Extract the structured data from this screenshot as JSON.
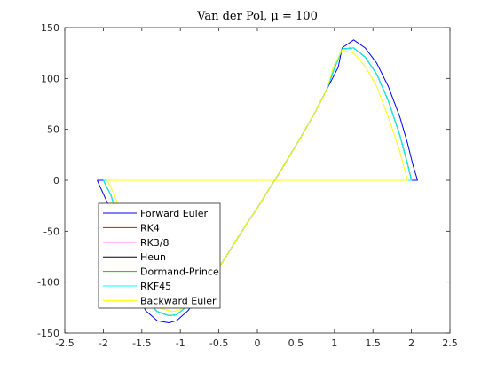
{
  "chart_data": {
    "type": "line",
    "title": "Van der Pol, μ = 100",
    "xlabel": "",
    "ylabel": "",
    "xlim": [
      -2.5,
      2.5
    ],
    "ylim": [
      -150,
      150
    ],
    "xticks": [
      -2.5,
      -2,
      -1.5,
      -1,
      -0.5,
      0,
      0.5,
      1,
      1.5,
      2,
      2.5
    ],
    "yticks": [
      -150,
      -100,
      -50,
      0,
      50,
      100,
      150
    ],
    "xtick_labels": [
      "-2.5",
      "-2",
      "-1.5",
      "-1",
      "-0.5",
      "0",
      "0.5",
      "1",
      "1.5",
      "2",
      "2.5"
    ],
    "ytick_labels": [
      "-150",
      "-100",
      "-50",
      "0",
      "50",
      "100",
      "150"
    ],
    "grid": false,
    "legend_position": "bottom-left",
    "series": [
      {
        "name": "Forward Euler",
        "color": "#0000ff",
        "x": [
          -2.08,
          -1.9,
          -1.75,
          -1.6,
          -1.45,
          -1.3,
          -1.15,
          -1.05,
          -0.9,
          -0.75,
          -0.6,
          -0.5,
          -0.45,
          -0.3,
          -0.15,
          0,
          0.15,
          0.3,
          0.45,
          0.6,
          0.75,
          0.9,
          1.05,
          1.1,
          1.25,
          1.4,
          1.55,
          1.7,
          1.85,
          1.95,
          2.02,
          2.08,
          1.9,
          1.7,
          1.5,
          1.3,
          1.1,
          1.0,
          0.9,
          0.8,
          0.65,
          0.5,
          0.3,
          0.1,
          -0.1,
          -0.3,
          -0.5,
          -0.7,
          -0.9,
          -1.1,
          -1.3,
          -1.5,
          -1.7,
          -1.9,
          -2.08
        ],
        "y": [
          0,
          -30,
          -70,
          -105,
          -128,
          -138,
          -140,
          -138,
          -128,
          -112,
          -95,
          -85,
          -80,
          -62,
          -44,
          -27,
          -9,
          9,
          28,
          47,
          67,
          89,
          111,
          130,
          138,
          130,
          115,
          92,
          62,
          36,
          15,
          0,
          0,
          0,
          0,
          0,
          0,
          0,
          0,
          0,
          0,
          0,
          0,
          0,
          0,
          0,
          0,
          0,
          0,
          0,
          0,
          0,
          0,
          0,
          0
        ]
      },
      {
        "name": "RK4",
        "color": "#ff0000",
        "x": [
          -2.0,
          -1.9,
          -1.75,
          -1.6,
          -1.45,
          -1.3,
          -1.15,
          -1.05,
          -0.9,
          -0.75,
          -0.6,
          -0.5,
          -0.45,
          -0.3,
          -0.15,
          0,
          0.15,
          0.3,
          0.45,
          0.6,
          0.75,
          0.9,
          1.0,
          1.1,
          1.25,
          1.4,
          1.55,
          1.7,
          1.85,
          1.95,
          2.0,
          1.8,
          1.6,
          1.4,
          1.2,
          1.05,
          0.95,
          0.85,
          0.75,
          0.6,
          0.4,
          0.2,
          0,
          -0.2,
          -0.4,
          -0.6,
          -0.8,
          -1.0,
          -1.2,
          -1.4,
          -1.6,
          -1.8,
          -2.0
        ],
        "y": [
          0,
          -15,
          -52,
          -92,
          -118,
          -129,
          -133,
          -132,
          -123,
          -109,
          -93,
          -85,
          -80,
          -62,
          -44,
          -27,
          -9,
          9,
          28,
          47,
          67,
          89,
          110,
          129,
          130,
          121,
          104,
          78,
          44,
          16,
          0,
          0,
          0,
          0,
          0,
          0,
          0,
          0,
          0,
          0,
          0,
          0,
          0,
          0,
          0,
          0,
          0,
          0,
          0,
          0,
          0,
          0,
          0
        ]
      },
      {
        "name": "RK3/8",
        "color": "#ff00ff",
        "x": [
          -2.0,
          -1.9,
          -1.75,
          -1.6,
          -1.45,
          -1.3,
          -1.15,
          -1.05,
          -0.9,
          -0.75,
          -0.6,
          -0.5,
          -0.45,
          -0.3,
          -0.15,
          0,
          0.15,
          0.3,
          0.45,
          0.6,
          0.75,
          0.9,
          1.0,
          1.1,
          1.25,
          1.4,
          1.55,
          1.7,
          1.85,
          1.95,
          2.0,
          1.8,
          1.6,
          1.4,
          1.2,
          1.05,
          0.95,
          0.85,
          0.75,
          0.6,
          0.4,
          0.2,
          0,
          -0.2,
          -0.4,
          -0.6,
          -0.8,
          -1.0,
          -1.2,
          -1.4,
          -1.6,
          -1.8,
          -2.0
        ],
        "y": [
          0,
          -15,
          -52,
          -92,
          -118,
          -129,
          -133,
          -132,
          -123,
          -109,
          -93,
          -85,
          -80,
          -62,
          -44,
          -27,
          -9,
          9,
          28,
          47,
          67,
          89,
          110,
          129,
          130,
          121,
          104,
          78,
          44,
          16,
          0,
          0,
          0,
          0,
          0,
          0,
          0,
          0,
          0,
          0,
          0,
          0,
          0,
          0,
          0,
          0,
          0,
          0,
          0,
          0,
          0,
          0,
          0
        ]
      },
      {
        "name": "Heun",
        "color": "#000000",
        "x": [
          -2.0,
          -1.9,
          -1.75,
          -1.6,
          -1.45,
          -1.3,
          -1.15,
          -1.05,
          -0.9,
          -0.75,
          -0.6,
          -0.5,
          -0.45,
          -0.3,
          -0.15,
          0,
          0.15,
          0.3,
          0.45,
          0.6,
          0.75,
          0.9,
          1.0,
          1.1,
          1.25,
          1.4,
          1.55,
          1.7,
          1.85,
          1.95,
          2.0,
          1.8,
          1.6,
          1.4,
          1.2,
          1.05,
          0.95,
          0.85,
          0.75,
          0.6,
          0.4,
          0.2,
          0,
          -0.2,
          -0.4,
          -0.6,
          -0.8,
          -1.0,
          -1.2,
          -1.4,
          -1.6,
          -1.8,
          -2.0
        ],
        "y": [
          0,
          -15,
          -52,
          -92,
          -118,
          -129,
          -133,
          -132,
          -123,
          -109,
          -93,
          -85,
          -80,
          -62,
          -44,
          -27,
          -9,
          9,
          28,
          47,
          67,
          89,
          110,
          129,
          130,
          121,
          104,
          78,
          44,
          16,
          0,
          0,
          0,
          0,
          0,
          0,
          0,
          0,
          0,
          0,
          0,
          0,
          0,
          0,
          0,
          0,
          0,
          0,
          0,
          0,
          0,
          0,
          0
        ]
      },
      {
        "name": "Dormand-Prince",
        "color": "#00cc00",
        "x": [
          -2.0,
          -1.9,
          -1.75,
          -1.6,
          -1.45,
          -1.3,
          -1.15,
          -1.05,
          -0.9,
          -0.75,
          -0.6,
          -0.5,
          -0.45,
          -0.3,
          -0.15,
          0,
          0.15,
          0.3,
          0.45,
          0.6,
          0.75,
          0.9,
          1.0,
          1.1,
          1.25,
          1.4,
          1.55,
          1.7,
          1.85,
          1.95,
          2.0,
          1.8,
          1.6,
          1.4,
          1.2,
          1.05,
          0.95,
          0.85,
          0.75,
          0.6,
          0.4,
          0.2,
          0,
          -0.2,
          -0.4,
          -0.6,
          -0.8,
          -1.0,
          -1.2,
          -1.4,
          -1.6,
          -1.8,
          -2.0
        ],
        "y": [
          0,
          -15,
          -52,
          -92,
          -118,
          -129,
          -133,
          -132,
          -123,
          -109,
          -93,
          -85,
          -80,
          -62,
          -44,
          -27,
          -9,
          9,
          28,
          47,
          67,
          89,
          110,
          129,
          130,
          121,
          104,
          78,
          44,
          16,
          0,
          0,
          0,
          0,
          0,
          0,
          0,
          0,
          0,
          0,
          0,
          0,
          0,
          0,
          0,
          0,
          0,
          0,
          0,
          0,
          0,
          0,
          0
        ]
      },
      {
        "name": "RKF45",
        "color": "#00ffff",
        "x": [
          -2.0,
          -1.9,
          -1.75,
          -1.6,
          -1.45,
          -1.3,
          -1.15,
          -1.05,
          -0.9,
          -0.75,
          -0.6,
          -0.5,
          -0.45,
          -0.3,
          -0.15,
          0,
          0.15,
          0.3,
          0.45,
          0.6,
          0.75,
          0.9,
          1.0,
          1.1,
          1.25,
          1.4,
          1.55,
          1.7,
          1.85,
          1.95,
          2.0,
          1.8,
          1.6,
          1.4,
          1.2,
          1.05,
          0.95,
          0.85,
          0.75,
          0.6,
          0.4,
          0.2,
          0,
          -0.2,
          -0.4,
          -0.6,
          -0.8,
          -1.0,
          -1.2,
          -1.4,
          -1.6,
          -1.8,
          -2.0
        ],
        "y": [
          0,
          -15,
          -52,
          -92,
          -118,
          -129,
          -133,
          -132,
          -123,
          -109,
          -93,
          -85,
          -80,
          -62,
          -44,
          -27,
          -9,
          9,
          28,
          47,
          67,
          89,
          110,
          129,
          130,
          121,
          104,
          78,
          44,
          16,
          0,
          0,
          0,
          0,
          0,
          0,
          0,
          0,
          0,
          0,
          0,
          0,
          0,
          0,
          0,
          0,
          0,
          0,
          0,
          0,
          0,
          0,
          0
        ]
      },
      {
        "name": "Backward Euler",
        "color": "#ffff00",
        "x": [
          -1.95,
          -1.85,
          -1.7,
          -1.55,
          -1.4,
          -1.25,
          -1.1,
          -1.0,
          -0.85,
          -0.7,
          -0.55,
          -0.45,
          -0.3,
          -0.15,
          0,
          0.15,
          0.3,
          0.45,
          0.6,
          0.75,
          0.9,
          0.98,
          1.1,
          1.25,
          1.4,
          1.55,
          1.7,
          1.85,
          1.92,
          1.95,
          1.75,
          1.55,
          1.35,
          1.15,
          1.0,
          0.9,
          0.8,
          0.7,
          0.55,
          0.35,
          0.15,
          -0.05,
          -0.25,
          -0.45,
          -0.65,
          -0.85,
          -1.05,
          -1.25,
          -1.45,
          -1.65,
          -1.85,
          -1.95
        ],
        "y": [
          0,
          -15,
          -52,
          -92,
          -118,
          -126,
          -129,
          -127,
          -118,
          -104,
          -90,
          -80,
          -62,
          -44,
          -27,
          -9,
          9,
          28,
          47,
          67,
          89,
          110,
          128,
          125,
          112,
          92,
          62,
          28,
          8,
          0,
          0,
          0,
          0,
          0,
          0,
          0,
          0,
          0,
          0,
          0,
          0,
          0,
          0,
          0,
          0,
          0,
          0,
          0,
          0,
          0,
          0,
          0
        ]
      }
    ]
  }
}
